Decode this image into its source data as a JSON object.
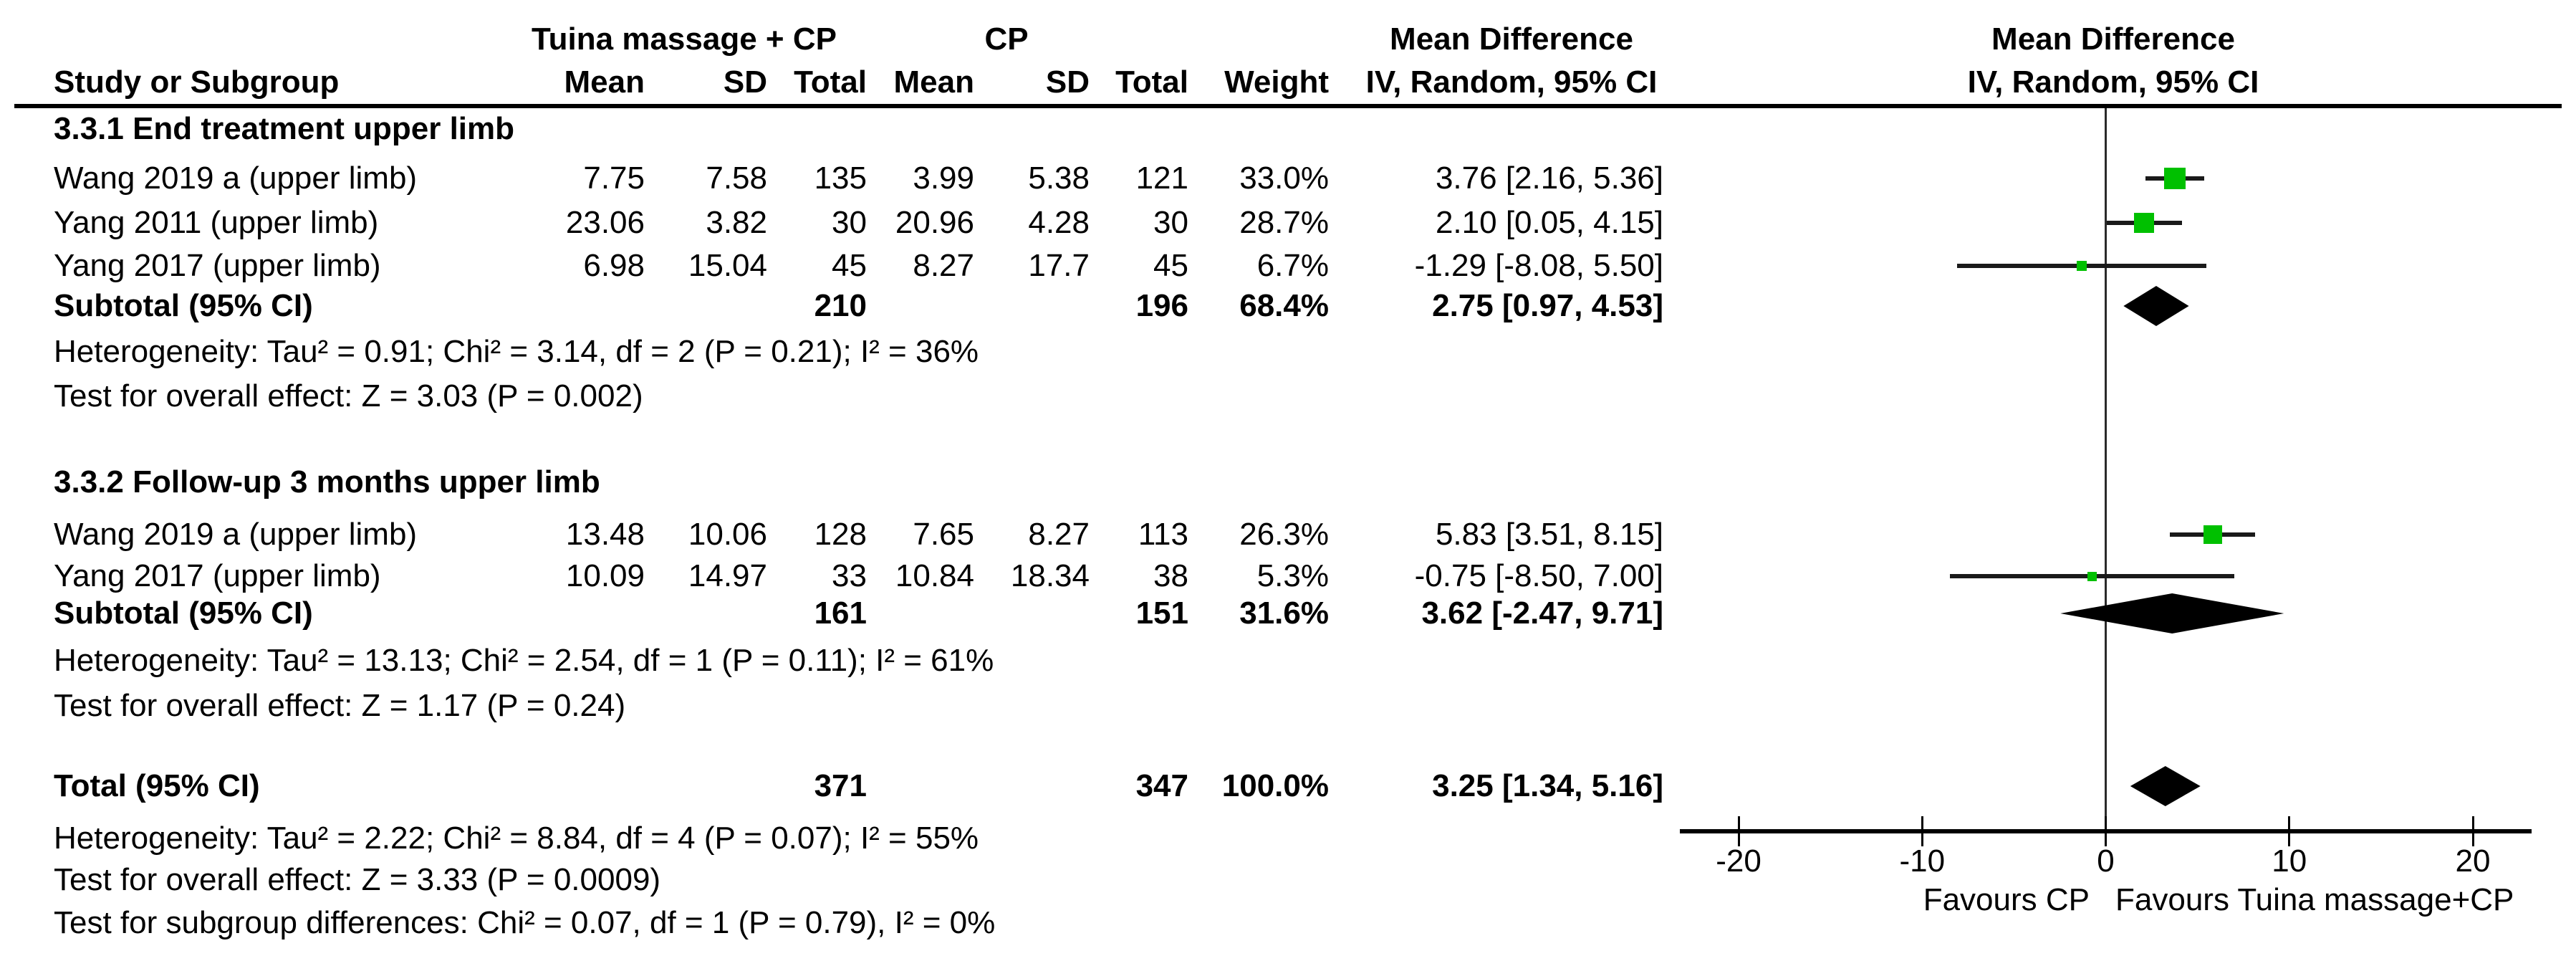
{
  "header": {
    "study_col": "Study or Subgroup",
    "group1": "Tuina massage + CP",
    "group2": "CP",
    "mean": "Mean",
    "sd": "SD",
    "total": "Total",
    "weight": "Weight",
    "effect_title": "Mean Difference",
    "effect_col": "IV, Random, 95% CI",
    "plot_title": "Mean Difference",
    "plot_subtitle": "IV, Random, 95% CI"
  },
  "sections": [
    {
      "label": "3.3.1 End treatment upper limb",
      "studies": [
        {
          "name": "Wang 2019 a (upper limb)",
          "mean_t": "7.75",
          "sd_t": "7.58",
          "total_t": "135",
          "mean_c": "3.99",
          "sd_c": "5.38",
          "total_c": "121",
          "weight": "33.0%",
          "md_ci": "3.76 [2.16, 5.36]"
        },
        {
          "name": "Yang 2011 (upper limb)",
          "mean_t": "23.06",
          "sd_t": "3.82",
          "total_t": "30",
          "mean_c": "20.96",
          "sd_c": "4.28",
          "total_c": "30",
          "weight": "28.7%",
          "md_ci": "2.10 [0.05, 4.15]"
        },
        {
          "name": "Yang 2017 (upper limb)",
          "mean_t": "6.98",
          "sd_t": "15.04",
          "total_t": "45",
          "mean_c": "8.27",
          "sd_c": "17.7",
          "total_c": "45",
          "weight": "6.7%",
          "md_ci": "-1.29 [-8.08, 5.50]"
        }
      ],
      "subtotal": {
        "label": "Subtotal (95% CI)",
        "total_t": "210",
        "total_c": "196",
        "weight": "68.4%",
        "md_ci": "2.75 [0.97, 4.53]"
      },
      "heterogeneity": "Heterogeneity: Tau² = 0.91; Chi² = 3.14, df = 2 (P = 0.21); I² = 36%",
      "overall_effect": "Test for overall effect: Z = 3.03 (P = 0.002)"
    },
    {
      "label": "3.3.2 Follow-up 3 months upper limb",
      "studies": [
        {
          "name": "Wang 2019 a (upper limb)",
          "mean_t": "13.48",
          "sd_t": "10.06",
          "total_t": "128",
          "mean_c": "7.65",
          "sd_c": "8.27",
          "total_c": "113",
          "weight": "26.3%",
          "md_ci": "5.83 [3.51, 8.15]"
        },
        {
          "name": "Yang 2017 (upper limb)",
          "mean_t": "10.09",
          "sd_t": "14.97",
          "total_t": "33",
          "mean_c": "10.84",
          "sd_c": "18.34",
          "total_c": "38",
          "weight": "5.3%",
          "md_ci": "-0.75 [-8.50, 7.00]"
        }
      ],
      "subtotal": {
        "label": "Subtotal (95% CI)",
        "total_t": "161",
        "total_c": "151",
        "weight": "31.6%",
        "md_ci": "3.62 [-2.47, 9.71]"
      },
      "heterogeneity": "Heterogeneity: Tau² = 13.13; Chi² = 2.54, df = 1 (P = 0.11); I² = 61%",
      "overall_effect": "Test for overall effect: Z = 1.17 (P = 0.24)"
    }
  ],
  "total": {
    "label": "Total (95% CI)",
    "total_t": "371",
    "total_c": "347",
    "weight": "100.0%",
    "md_ci": "3.25 [1.34, 5.16]"
  },
  "total_heterogeneity": "Heterogeneity: Tau² = 2.22; Chi² = 8.84, df = 4 (P = 0.07); I² = 55%",
  "total_overall_effect": "Test for overall effect: Z = 3.33 (P = 0.0009)",
  "subgroup_test": "Test for subgroup differences: Chi² = 0.07, df = 1 (P = 0.79), I² = 0%",
  "chart_data": {
    "type": "scatter",
    "subtype": "forest-plot",
    "title": "Mean Difference",
    "subtitle": "IV, Random, 95% CI",
    "xlim": [
      -23.2,
      23.2
    ],
    "ticks": [
      -20,
      -10,
      0,
      10,
      20
    ],
    "xlabel_left": "Favours CP",
    "xlabel_right": "Favours Tuina massage+CP",
    "marker_color": "#00C000",
    "line_color": "#1a1a1a",
    "diamond_color": "#000000",
    "rows": [
      {
        "label": "Wang 2019 a (upper limb) — end treatment",
        "kind": "study",
        "est": 3.76,
        "lo": 2.16,
        "hi": 5.36,
        "weight": 33.0,
        "y": 249
      },
      {
        "label": "Yang 2011 (upper limb) — end treatment",
        "kind": "study",
        "est": 2.1,
        "lo": 0.05,
        "hi": 4.15,
        "weight": 28.7,
        "y": 311
      },
      {
        "label": "Yang 2017 (upper limb) — end treatment",
        "kind": "study",
        "est": -1.29,
        "lo": -8.08,
        "hi": 5.5,
        "weight": 6.7,
        "y": 371
      },
      {
        "label": "Subtotal — end treatment upper limb",
        "kind": "diamond",
        "est": 2.75,
        "lo": 0.97,
        "hi": 4.53,
        "y": 427
      },
      {
        "label": "Wang 2019 a (upper limb) — follow-up 3 months",
        "kind": "study",
        "est": 5.83,
        "lo": 3.51,
        "hi": 8.15,
        "weight": 26.3,
        "y": 746
      },
      {
        "label": "Yang 2017 (upper limb) — follow-up 3 months",
        "kind": "study",
        "est": -0.75,
        "lo": -8.5,
        "hi": 7.0,
        "weight": 5.3,
        "y": 804
      },
      {
        "label": "Subtotal — follow-up 3 months upper limb",
        "kind": "diamond",
        "est": 3.62,
        "lo": -2.47,
        "hi": 9.71,
        "y": 856
      },
      {
        "label": "Total",
        "kind": "diamond",
        "est": 3.25,
        "lo": 1.34,
        "hi": 5.16,
        "y": 1097
      }
    ]
  }
}
